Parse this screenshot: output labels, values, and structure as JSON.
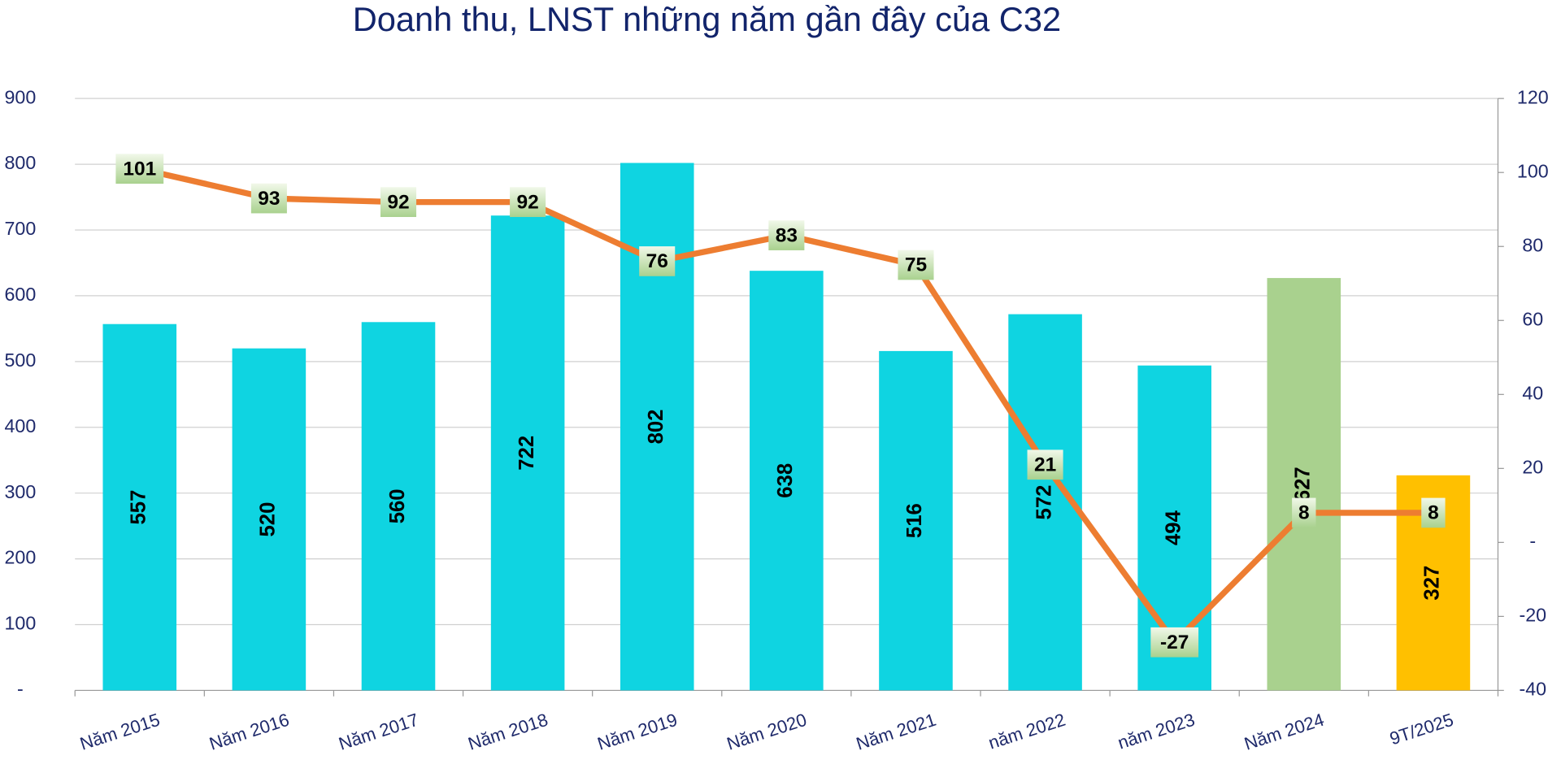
{
  "chart_data": {
    "type": "combo",
    "title": "Doanh thu, LNST những năm gần đây của C32",
    "categories": [
      "Năm 2015",
      "Năm 2016",
      "Năm 2017",
      "Năm 2018",
      "Năm 2019",
      "Năm 2020",
      "Năm 2021",
      "năm 2022",
      "năm 2023",
      "Năm 2024",
      "9T/2025"
    ],
    "series": [
      {
        "type": "bar",
        "values": [
          557,
          520,
          560,
          722,
          802,
          638,
          516,
          572,
          494,
          627,
          327
        ],
        "colors": [
          "#0fd4e1",
          "#0fd4e1",
          "#0fd4e1",
          "#0fd4e1",
          "#0fd4e1",
          "#0fd4e1",
          "#0fd4e1",
          "#0fd4e1",
          "#0fd4e1",
          "#a9d18e",
          "#ffc000"
        ]
      },
      {
        "type": "line",
        "axis": "y2",
        "color": "#ed7d31",
        "values": [
          101,
          93,
          92,
          92,
          76,
          83,
          75,
          21,
          -27,
          8,
          8
        ]
      }
    ],
    "ylim": [
      0,
      900
    ],
    "yticks": [
      {
        "value": 0,
        "label": "-"
      },
      100,
      200,
      300,
      400,
      500,
      600,
      700,
      800,
      900
    ],
    "y2lim": [
      -40,
      120
    ],
    "y2ticks": [
      -40,
      -20,
      {
        "value": 0,
        "label": "-"
      },
      20,
      40,
      60,
      80,
      100,
      120
    ],
    "grid": true
  }
}
